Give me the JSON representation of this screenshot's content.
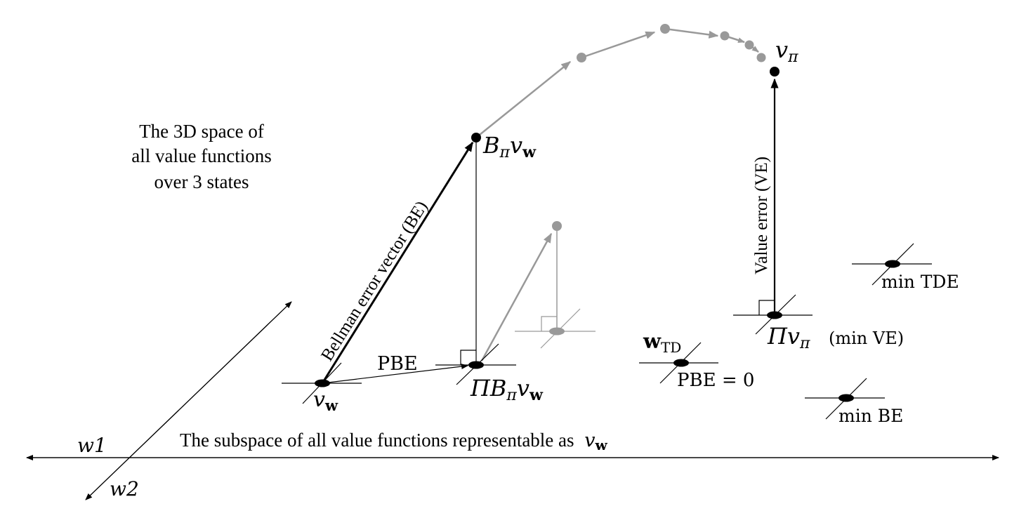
{
  "space_label": [
    "The 3D space of",
    "all value functions",
    "over 3 states"
  ],
  "subspace_label": "The subspace of all value functions representable as",
  "axis_w1": "w1",
  "axis_w2": "w2",
  "bellman_error_label": "Bellman error vector (BE)",
  "value_error_label": "Value error (VE)",
  "pbe_label": "PBE",
  "pbe_zero_label": "PBE = 0",
  "v_w": "v",
  "v_w_sub": "w",
  "b_pi_v_w": "B",
  "pi_b_pi_v_w": "ΠB",
  "v_pi": "v",
  "pi_sym": "π",
  "pi_v_pi": "Πv",
  "min_ve": "(min VE)",
  "w_td": "w",
  "w_td_sub": "TD",
  "min_tde": "min TDE",
  "min_be": "min BE",
  "colors": {
    "main": "#000000",
    "faded": "#999999"
  }
}
